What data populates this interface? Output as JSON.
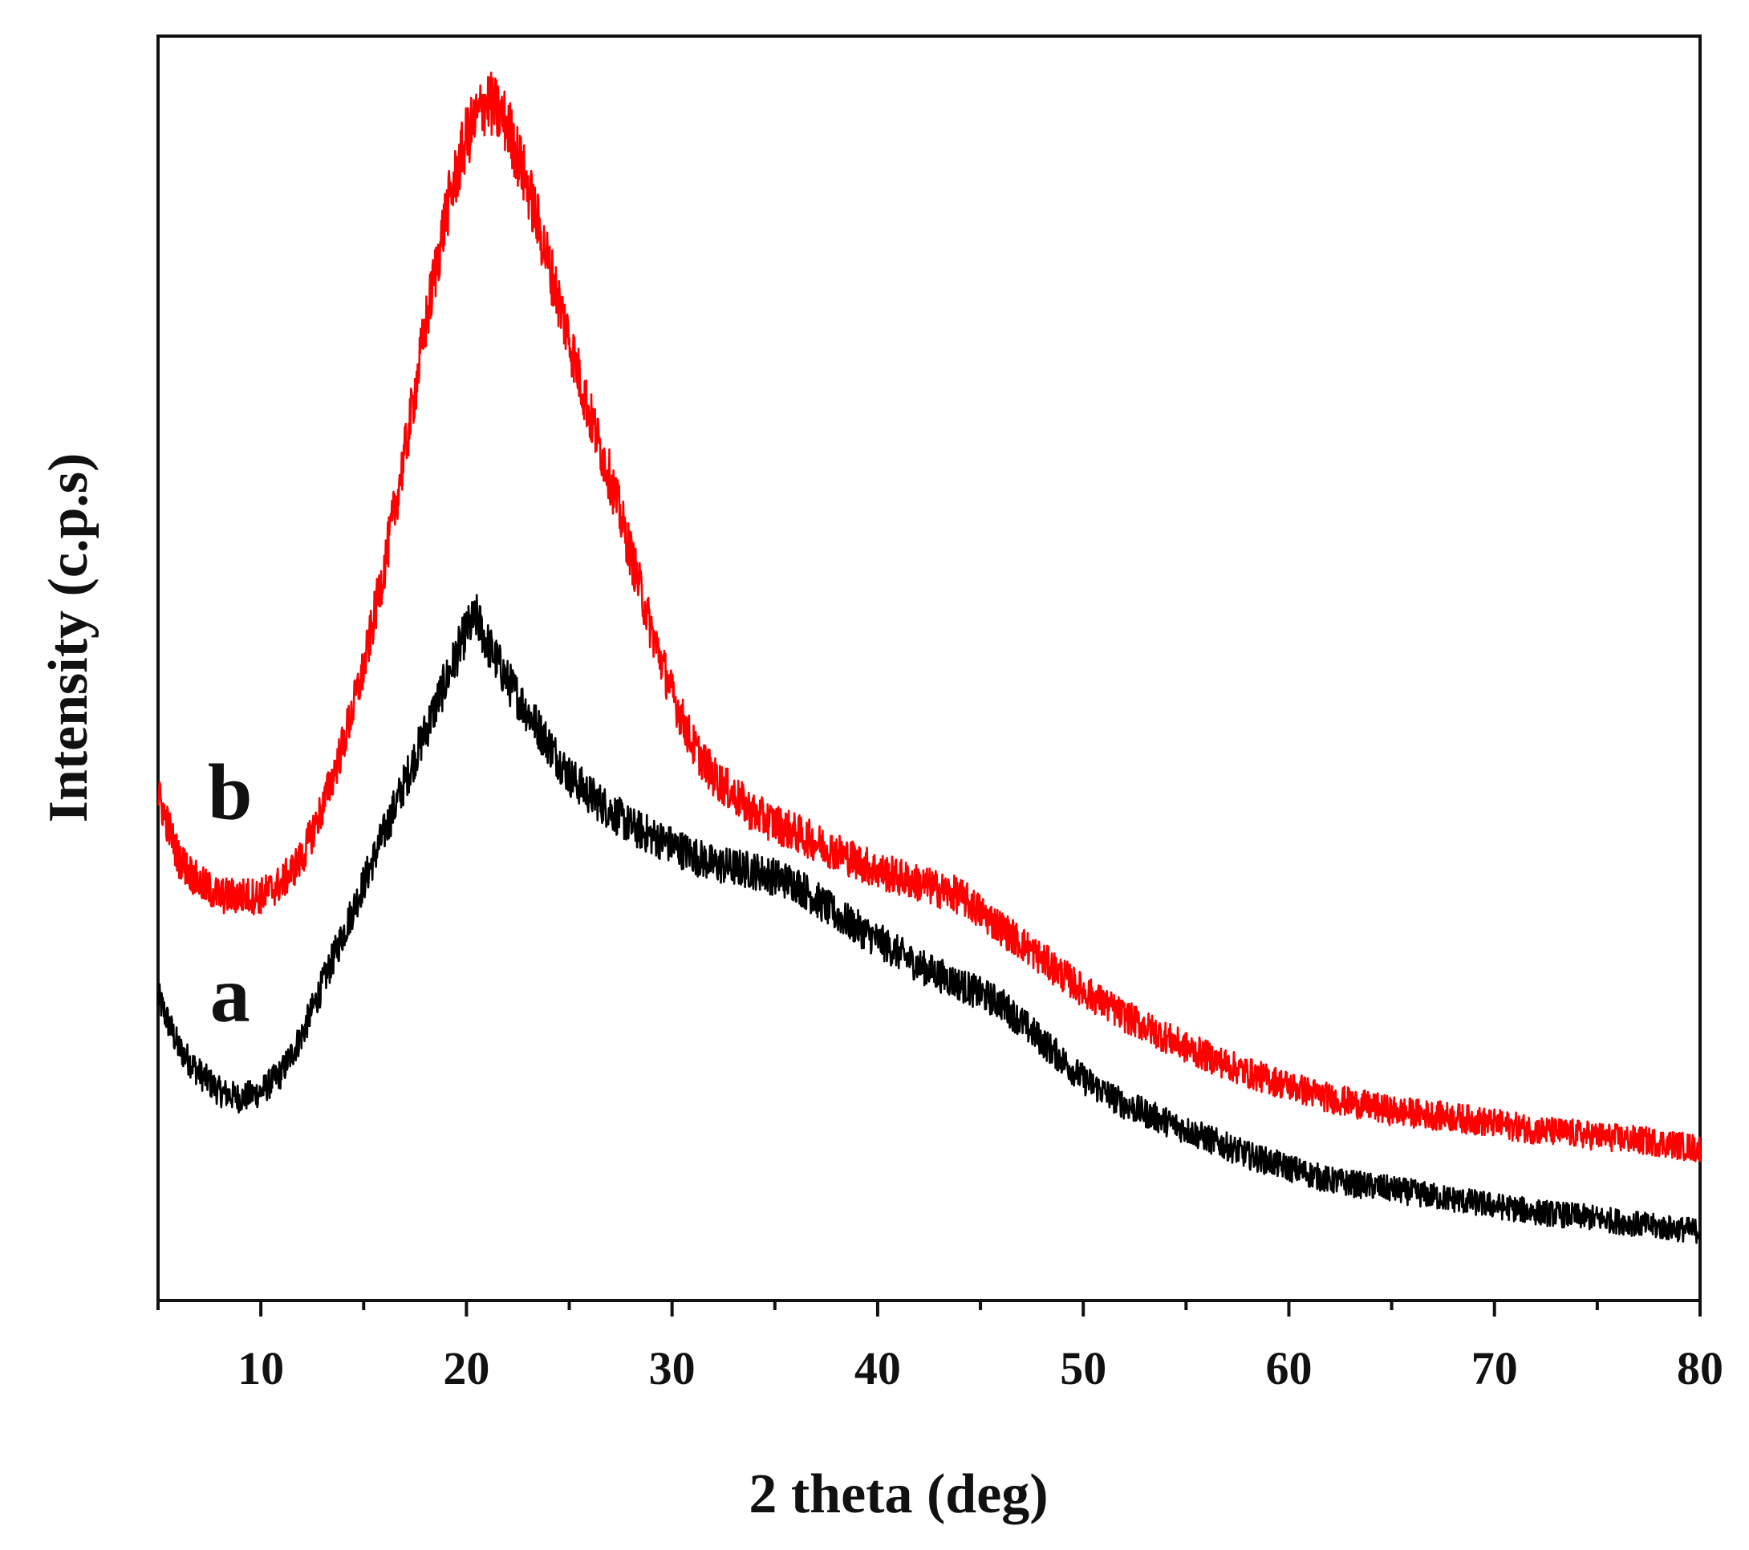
{
  "chart_data": {
    "type": "line",
    "title": "",
    "xlabel": "2 theta (deg)",
    "ylabel": "Intensity (c.p.s)",
    "xlim": [
      5,
      80
    ],
    "ylim": [
      0,
      100
    ],
    "x_ticks": [
      10,
      20,
      30,
      40,
      50,
      60,
      70,
      80
    ],
    "y_ticks_shown": false,
    "grid": false,
    "series": [
      {
        "name": "a",
        "color": "#000000",
        "x": [
          5,
          6,
          7,
          8,
          9,
          10,
          11,
          12,
          13,
          14,
          15,
          16,
          17,
          18,
          19,
          20,
          20.5,
          21,
          22,
          23,
          24,
          25,
          26,
          28,
          30,
          32,
          34,
          36,
          38,
          40,
          42,
          44,
          46,
          48,
          50,
          52,
          55,
          58,
          60,
          62,
          65,
          68,
          70,
          72,
          75,
          78,
          80
        ],
        "values": [
          24,
          20,
          18,
          16.5,
          16,
          16.5,
          18,
          21,
          25,
          29,
          33,
          37,
          41,
          45,
          49,
          53,
          54,
          52,
          49,
          46.5,
          44,
          41.5,
          40,
          37.5,
          36,
          34.5,
          34,
          33,
          30.5,
          28.5,
          26.5,
          25,
          23.5,
          20.5,
          17.5,
          15.5,
          13.5,
          11.5,
          10.5,
          9.5,
          8.8,
          8,
          7.5,
          7,
          6.5,
          5.8,
          5.5
        ]
      },
      {
        "name": "b",
        "color": "#ff0000",
        "x": [
          5,
          6,
          7,
          8,
          9,
          10,
          11,
          12,
          13,
          14,
          15,
          16,
          17,
          18,
          19,
          20,
          21,
          22,
          23,
          24,
          25,
          26,
          27,
          28,
          29,
          30,
          31,
          32,
          34,
          36,
          38,
          40,
          42,
          44,
          46,
          48,
          50,
          52,
          55,
          58,
          60,
          62,
          65,
          68,
          70,
          72,
          75,
          78,
          80
        ],
        "values": [
          40,
          35,
          33,
          32,
          32,
          32,
          33,
          35,
          39,
          44,
          50,
          58,
          67,
          77,
          86,
          92,
          95,
          93,
          88,
          82,
          76,
          70,
          65,
          59,
          53,
          48,
          44,
          41.5,
          38.5,
          37,
          35.5,
          34,
          33,
          32,
          29.5,
          27,
          24.5,
          22.5,
          20,
          18,
          17,
          16,
          15,
          14.5,
          14,
          13.5,
          13,
          12.5,
          12
        ]
      }
    ],
    "annotations": [
      {
        "text": "b",
        "x": 8.5,
        "y": 40
      },
      {
        "text": "a",
        "x": 8.5,
        "y": 24
      }
    ]
  }
}
